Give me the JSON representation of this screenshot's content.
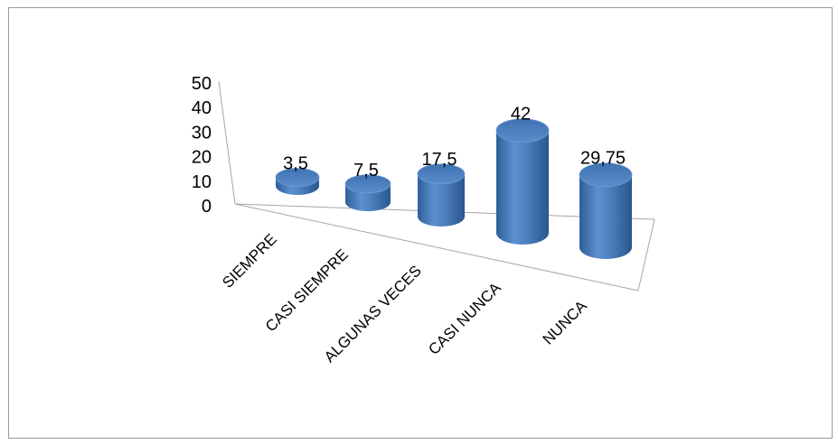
{
  "chart_data": {
    "type": "bar",
    "style": "3d-cylinder",
    "categories": [
      "SIEMPRE",
      "CASI SIEMPRE",
      "ALGUNAS VECES",
      "CASI NUNCA",
      "NUNCA"
    ],
    "values": [
      3.5,
      7.5,
      17.5,
      42,
      29.75
    ],
    "data_labels": [
      "3,5",
      "7,5",
      "17,5",
      "42",
      "29,75"
    ],
    "y_ticks": [
      "0",
      "10",
      "20",
      "30",
      "40",
      "50"
    ],
    "ylim": [
      0,
      50
    ],
    "grid": false,
    "legend": "none",
    "bar_color": "#4a7ebb"
  }
}
